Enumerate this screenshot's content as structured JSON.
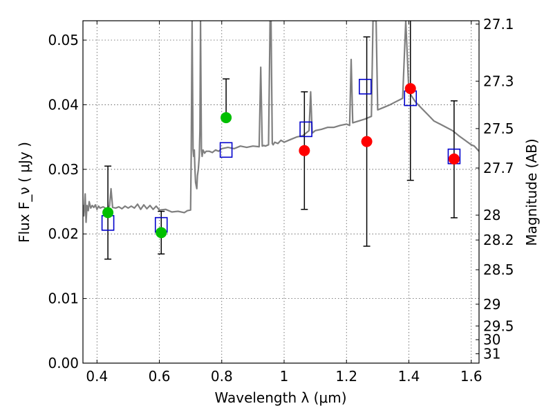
{
  "chart_data": {
    "type": "scatter",
    "title": "",
    "xlabel": "Wavelength  λ (μm)",
    "ylabel": "Flux  F_ν  ( μJy )",
    "ylabel_right": "Magnitude (AB)",
    "xlim": [
      0.355,
      1.625
    ],
    "ylim": [
      0.0,
      0.053
    ],
    "grid": true,
    "x_ticks": [
      0.4,
      0.6,
      0.8,
      1.0,
      1.2,
      1.4,
      1.6
    ],
    "x_tick_labels": [
      "0.4",
      "0.6",
      "0.8",
      "1",
      "1.2",
      "1.4",
      "1.6"
    ],
    "y_ticks": [
      0.0,
      0.01,
      0.02,
      0.03,
      0.04,
      0.05
    ],
    "y_tick_labels": [
      "0.00",
      "0.01",
      "0.02",
      "0.03",
      "0.04",
      "0.05"
    ],
    "right_ticks": [
      "27.1",
      "27.3",
      "27.5",
      "27.7",
      "28",
      "28.2",
      "28.5",
      "29",
      "29.5",
      "30",
      "31"
    ],
    "colors": {
      "model": "#7f7f7f",
      "green": "#00bf00",
      "red": "#ff0000",
      "square": "#0000cc",
      "error": "#000000",
      "grid": "#555555"
    },
    "series": [
      {
        "marker": "circle",
        "color": "#00bf00",
        "points": [
          {
            "x": 0.435,
            "y": 0.0233,
            "yerr_low": 0.0161,
            "yerr_high": 0.0305
          },
          {
            "x": 0.606,
            "y": 0.0202,
            "yerr_low": 0.0169,
            "yerr_high": 0.0235
          },
          {
            "x": 0.814,
            "y": 0.038,
            "yerr_low": null,
            "yerr_high": 0.044
          }
        ]
      },
      {
        "marker": "circle",
        "color": "#ff0000",
        "points": [
          {
            "x": 1.065,
            "y": 0.0329,
            "yerr_low": 0.0238,
            "yerr_high": 0.042
          },
          {
            "x": 1.265,
            "y": 0.0343,
            "yerr_low": 0.0181,
            "yerr_high": 0.0505
          },
          {
            "x": 1.405,
            "y": 0.0425,
            "yerr_low": 0.0283,
            "yerr_high": 0.053
          },
          {
            "x": 1.545,
            "y": 0.0316,
            "yerr_low": 0.0225,
            "yerr_high": 0.0406
          }
        ]
      },
      {
        "marker": "square",
        "color": "#0000cc",
        "points": [
          {
            "x": 0.435,
            "y": 0.0217
          },
          {
            "x": 0.606,
            "y": 0.0214
          },
          {
            "x": 0.814,
            "y": 0.033
          },
          {
            "x": 1.07,
            "y": 0.0362
          },
          {
            "x": 1.26,
            "y": 0.0428
          },
          {
            "x": 1.405,
            "y": 0.041
          },
          {
            "x": 1.545,
            "y": 0.032
          }
        ]
      }
    ],
    "model_spectrum": {
      "x": [
        0.355,
        0.358,
        0.362,
        0.365,
        0.368,
        0.372,
        0.375,
        0.38,
        0.385,
        0.39,
        0.395,
        0.4,
        0.405,
        0.41,
        0.42,
        0.43,
        0.44,
        0.445,
        0.45,
        0.46,
        0.47,
        0.48,
        0.49,
        0.5,
        0.51,
        0.52,
        0.53,
        0.54,
        0.55,
        0.56,
        0.57,
        0.58,
        0.59,
        0.6,
        0.62,
        0.64,
        0.66,
        0.68,
        0.69,
        0.7,
        0.702,
        0.705,
        0.708,
        0.71,
        0.712,
        0.714,
        0.716,
        0.72,
        0.722,
        0.725,
        0.728,
        0.73,
        0.732,
        0.735,
        0.737,
        0.74,
        0.745,
        0.75,
        0.76,
        0.77,
        0.78,
        0.79,
        0.8,
        0.82,
        0.84,
        0.86,
        0.88,
        0.9,
        0.92,
        0.925,
        0.93,
        0.935,
        0.94,
        0.95,
        0.955,
        0.958,
        0.962,
        0.965,
        0.97,
        0.98,
        0.99,
        1.0,
        1.02,
        1.04,
        1.06,
        1.08,
        1.085,
        1.09,
        1.095,
        1.1,
        1.12,
        1.14,
        1.16,
        1.18,
        1.2,
        1.21,
        1.215,
        1.22,
        1.24,
        1.26,
        1.28,
        1.285,
        1.29,
        1.295,
        1.3,
        1.32,
        1.34,
        1.36,
        1.38,
        1.39,
        1.4,
        1.42,
        1.44,
        1.46,
        1.48,
        1.5,
        1.52,
        1.54,
        1.56,
        1.58,
        1.6,
        1.61,
        1.625
      ],
      "y": [
        0.0245,
        0.0228,
        0.0262,
        0.0218,
        0.0244,
        0.0236,
        0.025,
        0.024,
        0.0244,
        0.0241,
        0.0245,
        0.0238,
        0.0243,
        0.024,
        0.0242,
        0.0239,
        0.0243,
        0.027,
        0.0241,
        0.024,
        0.0242,
        0.0239,
        0.0243,
        0.024,
        0.0243,
        0.024,
        0.0246,
        0.0238,
        0.0245,
        0.0239,
        0.0244,
        0.0238,
        0.0243,
        0.0237,
        0.0238,
        0.0234,
        0.0235,
        0.0233,
        0.0236,
        0.0237,
        0.032,
        0.053,
        0.033,
        0.032,
        0.033,
        0.03,
        0.028,
        0.027,
        0.029,
        0.03,
        0.032,
        0.036,
        0.053,
        0.033,
        0.032,
        0.033,
        0.0325,
        0.0328,
        0.0328,
        0.0326,
        0.033,
        0.0328,
        0.0332,
        0.0334,
        0.0332,
        0.0336,
        0.0334,
        0.0336,
        0.0335,
        0.0458,
        0.0336,
        0.0337,
        0.0336,
        0.0338,
        0.053,
        0.053,
        0.034,
        0.0338,
        0.0342,
        0.034,
        0.0345,
        0.0342,
        0.0346,
        0.035,
        0.0352,
        0.036,
        0.042,
        0.0356,
        0.0358,
        0.036,
        0.0362,
        0.0365,
        0.0365,
        0.0368,
        0.037,
        0.0368,
        0.047,
        0.0372,
        0.0375,
        0.0378,
        0.0382,
        0.053,
        0.053,
        0.053,
        0.0392,
        0.0396,
        0.04,
        0.0405,
        0.041,
        0.053,
        0.042,
        0.0405,
        0.0395,
        0.0385,
        0.0375,
        0.037,
        0.0365,
        0.036,
        0.0352,
        0.0345,
        0.0338,
        0.0336,
        0.0328
      ]
    }
  }
}
